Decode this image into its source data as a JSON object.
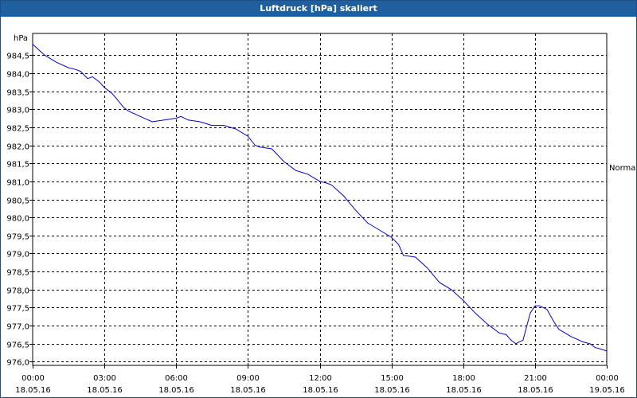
{
  "window": {
    "title": "Luftdruck [hPa] skaliert"
  },
  "chart_data": {
    "type": "line",
    "title": "Luftdruck [hPa] skaliert",
    "ylabel": "hPa",
    "right_label": "Normal",
    "ylim": [
      975.9,
      985.1
    ],
    "y_ticks": [
      "984,5",
      "984,0",
      "983,5",
      "983,0",
      "982,5",
      "982,0",
      "981,5",
      "981,0",
      "980,5",
      "980,0",
      "979,5",
      "979,0",
      "978,5",
      "978,0",
      "977,5",
      "977,0",
      "976,5",
      "976,0"
    ],
    "y_tick_values": [
      984.5,
      984.0,
      983.5,
      983.0,
      982.5,
      982.0,
      981.5,
      981.0,
      980.5,
      980.0,
      979.5,
      979.0,
      978.5,
      978.0,
      977.5,
      977.0,
      976.5,
      976.0
    ],
    "x_ticks": [
      {
        "time": "00:00",
        "date": "18.05.16"
      },
      {
        "time": "03:00",
        "date": "18.05.16"
      },
      {
        "time": "06:00",
        "date": "18.05.16"
      },
      {
        "time": "09:00",
        "date": "18.05.16"
      },
      {
        "time": "12:00",
        "date": "18.05.16"
      },
      {
        "time": "15:00",
        "date": "18.05.16"
      },
      {
        "time": "18:00",
        "date": "18.05.16"
      },
      {
        "time": "21:00",
        "date": "18.05.16"
      },
      {
        "time": "00:00",
        "date": "19.05.16"
      }
    ],
    "grid": true,
    "colors": {
      "line": "#0000cc",
      "grid": "#000000",
      "title_bar": "#1f5f9e"
    },
    "series": [
      {
        "x": [
          0,
          0.5,
          1.0,
          1.5,
          1.8,
          2.0,
          2.3,
          2.5,
          2.8,
          3.0,
          3.3,
          3.5,
          3.8,
          4.0,
          4.5,
          5.0,
          5.5,
          6.0,
          6.2,
          6.5,
          7.0,
          7.5,
          8.0,
          8.5,
          9.0,
          9.3,
          9.5,
          10.0,
          10.5,
          11.0,
          11.5,
          12.0,
          12.3,
          12.5,
          13.0,
          13.5,
          14.0,
          14.5,
          15.0,
          15.3,
          15.5,
          16.0,
          16.5,
          17.0,
          17.5,
          18.0,
          18.5,
          19.0,
          19.5,
          19.8,
          20.0,
          20.2,
          20.5,
          20.8,
          21.0,
          21.2,
          21.5,
          21.8,
          22.0,
          22.5,
          23.0,
          23.3,
          23.5,
          24.0
        ],
        "y": [
          984.8,
          984.5,
          984.3,
          984.15,
          984.1,
          984.05,
          983.85,
          983.9,
          983.75,
          983.6,
          983.45,
          983.3,
          983.05,
          982.95,
          982.8,
          982.65,
          982.7,
          982.75,
          982.8,
          982.7,
          982.65,
          982.55,
          982.55,
          982.45,
          982.25,
          982.0,
          981.95,
          981.9,
          981.55,
          981.3,
          981.2,
          981.0,
          980.95,
          980.9,
          980.6,
          980.2,
          979.85,
          979.65,
          979.45,
          979.25,
          978.95,
          978.9,
          978.6,
          978.2,
          978.0,
          977.7,
          977.35,
          977.05,
          976.8,
          976.75,
          976.6,
          976.5,
          976.6,
          977.35,
          977.55,
          977.55,
          977.45,
          977.1,
          976.9,
          976.7,
          976.55,
          976.5,
          976.4,
          976.3
        ]
      }
    ]
  }
}
